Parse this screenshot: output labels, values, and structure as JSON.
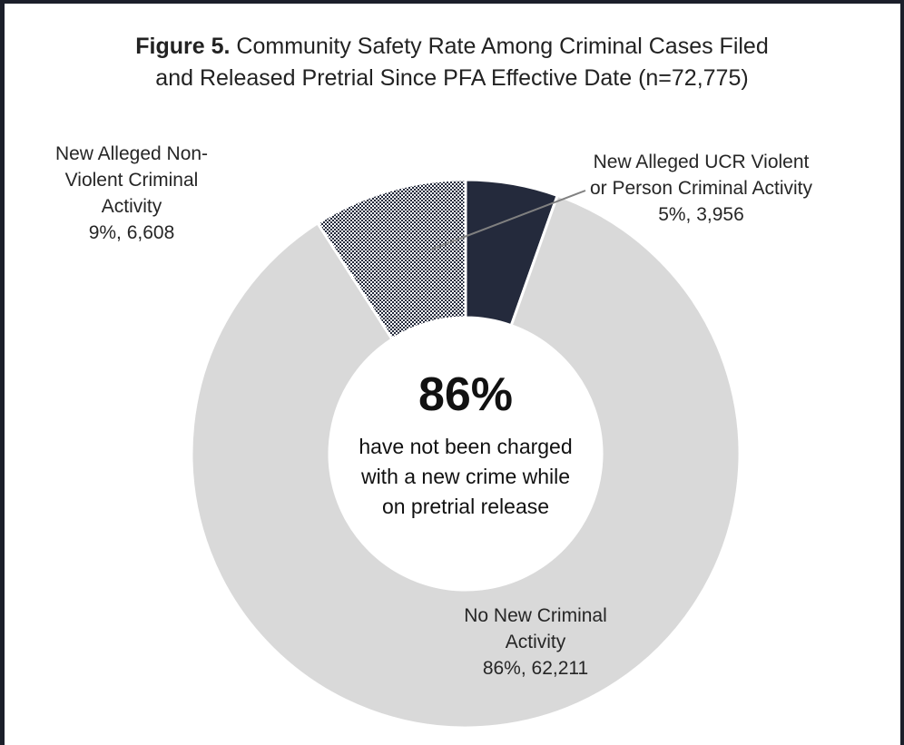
{
  "chart_data": {
    "type": "pie",
    "title_bold": "Figure 5.",
    "title_line1": "Community Safety Rate Among Criminal Cases Filed",
    "title_line2": "and Released Pretrial Since PFA Effective Date (n=72,775)",
    "series": [
      {
        "name": "New Alleged UCR Violent or Person Criminal Activity",
        "label_lines": [
          "New Alleged UCR Violent",
          "or Person Criminal Activity"
        ],
        "percent_label": "5%, 3,956",
        "value": 3956,
        "color": "#242a3c",
        "pattern": "solid"
      },
      {
        "name": "No New Criminal Activity",
        "label_lines": [
          "No New Criminal",
          "Activity"
        ],
        "percent_label": "86%, 62,211",
        "value": 62211,
        "color": "#d9d9d9",
        "pattern": "solid"
      },
      {
        "name": "New Alleged Non-Violent Criminal Activity",
        "label_lines": [
          "New Alleged Non-",
          "Violent Criminal",
          "Activity"
        ],
        "percent_label": "9%, 6,608",
        "value": 6608,
        "color": "#242a3c",
        "pattern": "checkered"
      }
    ],
    "center_value": "86%",
    "center_text": [
      "have not been charged",
      "with a new crime while",
      "on pretrial release"
    ]
  }
}
